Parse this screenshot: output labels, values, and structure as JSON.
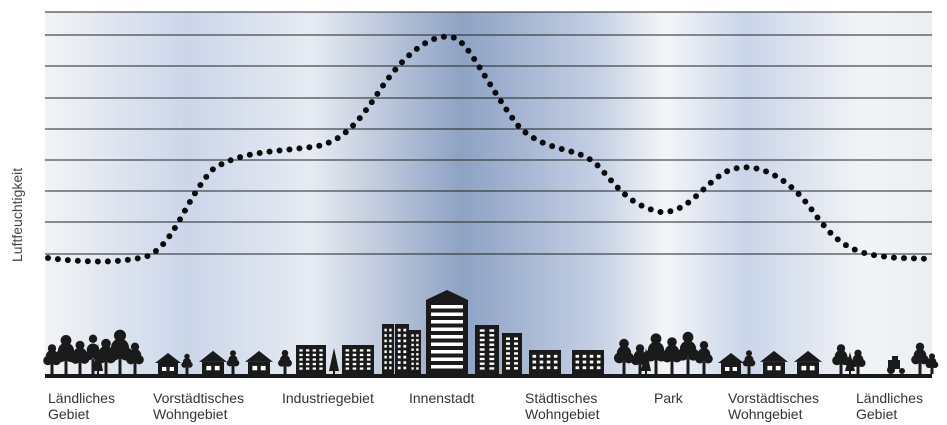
{
  "y_axis_label": "Luftfeuchtigkeit",
  "zones": [
    {
      "label_lines": [
        "Ländliches",
        "Gebiet"
      ]
    },
    {
      "label_lines": [
        "Vorstädtisches",
        "Wohngebiet"
      ]
    },
    {
      "label_lines": [
        "Industriegebiet"
      ]
    },
    {
      "label_lines": [
        "Innenstadt"
      ]
    },
    {
      "label_lines": [
        "Städtisches",
        "Wohngebiet"
      ]
    },
    {
      "label_lines": [
        "Park"
      ]
    },
    {
      "label_lines": [
        "Vorstädtisches",
        "Wohngebiet"
      ]
    },
    {
      "label_lines": [
        "Ländliches",
        "Gebiet"
      ]
    }
  ],
  "profile": {
    "style": "dotted-curve",
    "relative_humidity_levels": [
      0.34,
      0.67,
      0.72,
      1.0,
      0.62,
      0.44,
      0.61,
      0.34
    ]
  },
  "colors": {
    "curve": "#0a0a0a",
    "gridline": "#222222",
    "fill_light": "#f2f3f5",
    "fill_mid": "#c9d5ea",
    "fill_dark": "#8aa0c4",
    "silhouette": "#1a1a1a"
  },
  "icons": [
    "tree-icon",
    "house-icon",
    "factory-icon",
    "skyscraper-icon",
    "apartment-icon",
    "tractor-icon"
  ]
}
